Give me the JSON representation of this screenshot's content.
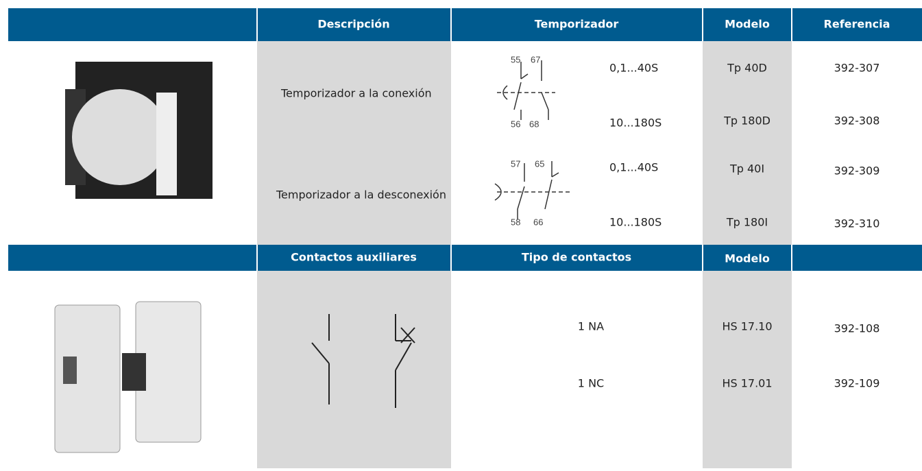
{
  "header1": [
    "Descripción",
    "Temporizador",
    "Modelo",
    "Referencia"
  ],
  "section1": {
    "descriptions": [
      "Temporizador a la conexión",
      "Temporizador a la desconexión"
    ],
    "timings": [
      "0,1...40S",
      "10...180S",
      "0,1...40S",
      "10...180S"
    ],
    "models": [
      "Tp 40D",
      "Tp 180D",
      "Tp 40I",
      "Tp 180I"
    ],
    "references": [
      "392-307",
      "392-308",
      "392-309",
      "392-310"
    ],
    "symbols": [
      {
        "labels": [
          "55",
          "67",
          "56",
          "68"
        ]
      },
      {
        "labels": [
          "57",
          "65",
          "58",
          "66"
        ]
      }
    ]
  },
  "header2": [
    "Contactos auxiliares",
    "Tipo de contactos",
    "Modelo"
  ],
  "section2": {
    "types": [
      "1 NA",
      "1 NC"
    ],
    "models": [
      "HS 17.10",
      "HS 17.01"
    ],
    "references": [
      "392-108",
      "392-109"
    ]
  }
}
